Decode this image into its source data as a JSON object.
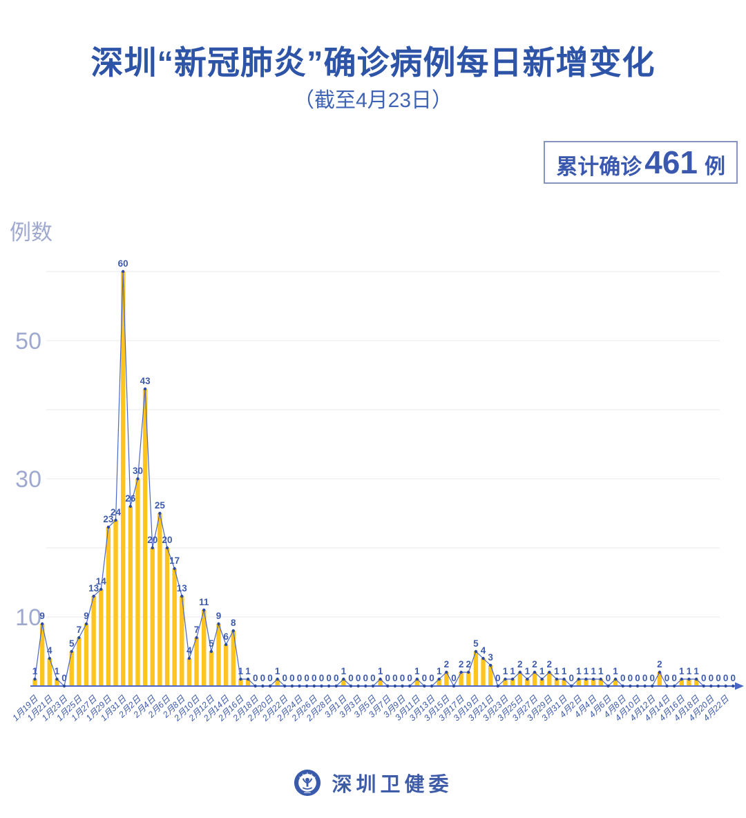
{
  "header": {
    "title": "深圳“新冠肺炎”确诊病例每日新增变化",
    "subtitle": "（截至4月23日）"
  },
  "badge": {
    "label": "累计确诊",
    "value": "461",
    "unit": "例"
  },
  "chart_data": {
    "type": "bar",
    "combo": "bar+line",
    "title": "深圳“新冠肺炎”确诊病例每日新增变化",
    "subtitle": "（截至4月23日）",
    "ylabel": "例数",
    "y_ticks": [
      10,
      30,
      50
    ],
    "ylim": [
      0,
      60
    ],
    "grid_interval": 10,
    "legend": "none",
    "x_tick_every": 2,
    "x_tick_labels": [
      "1月19日",
      "1月21日",
      "1月23日",
      "1月25日",
      "1月27日",
      "1月29日",
      "1月31日",
      "2月2日",
      "2月4日",
      "2月6日",
      "2月8日",
      "2月10日",
      "2月12日",
      "2月14日",
      "2月16日",
      "2月18日",
      "2月20日",
      "2月22日",
      "2月24日",
      "2月26日",
      "2月28日",
      "3月1日",
      "3月3日",
      "3月5日",
      "3月7日",
      "3月9日",
      "3月11日",
      "3月13日",
      "3月15日",
      "3月17日",
      "3月19日",
      "3月21日",
      "3月23日",
      "3月25日",
      "3月27日",
      "3月29日",
      "3月31日",
      "4月2日",
      "4月4日",
      "4月6日",
      "4月8日",
      "4月10日",
      "4月12日",
      "4月14日",
      "4月16日",
      "4月18日",
      "4月20日",
      "4月22日"
    ],
    "values": [
      1,
      9,
      4,
      1,
      0,
      5,
      7,
      9,
      13,
      14,
      23,
      24,
      60,
      26,
      30,
      43,
      20,
      25,
      20,
      17,
      13,
      4,
      7,
      11,
      5,
      9,
      6,
      8,
      1,
      1,
      0,
      0,
      0,
      1,
      0,
      0,
      0,
      0,
      0,
      0,
      0,
      0,
      1,
      0,
      0,
      0,
      0,
      1,
      0,
      0,
      0,
      0,
      1,
      0,
      0,
      1,
      2,
      0,
      2,
      2,
      5,
      4,
      3,
      0,
      1,
      1,
      2,
      1,
      2,
      1,
      2,
      1,
      1,
      0,
      1,
      1,
      1,
      1,
      0,
      1,
      0,
      0,
      0,
      0,
      0,
      2,
      0,
      0,
      1,
      1,
      1,
      0,
      0,
      0,
      0,
      0
    ],
    "total": 461
  },
  "footer": {
    "text": "深圳卫健委"
  },
  "colors": {
    "title": "#2E54A8",
    "subtitle": "#3F63B5",
    "badge_text": "#3A58AE",
    "badge_border": "#8493C0",
    "bar": "#FFC41F",
    "line": "#4A67C5",
    "marker": "#2B4AA0",
    "value_label": "#3D5AAB",
    "x_label": "#3D5AAB",
    "y_label": "#9FA8CE",
    "grid": "#E8E8EC",
    "axis": "#4A67C5",
    "brand": "#3E5CA8"
  }
}
